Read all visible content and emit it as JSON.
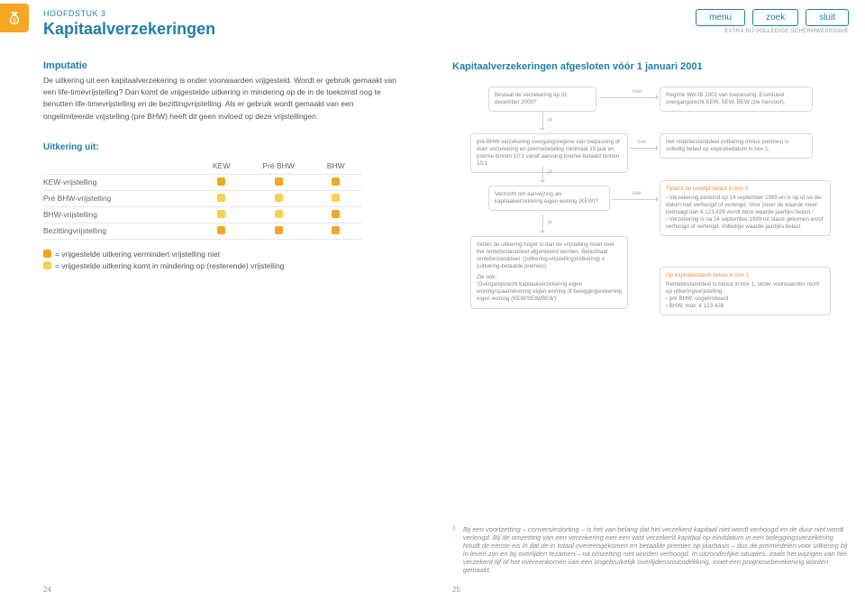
{
  "colors": {
    "accent": "#1f7fa8",
    "orange": "#f5a623",
    "yellow": "#f7d154",
    "text": "#555555",
    "muted": "#888888",
    "border": "#d8d8d8"
  },
  "header": {
    "chapter": "HOOFDSTUK 3",
    "title": "Kapitaalverzekeringen",
    "nav": {
      "menu": "menu",
      "zoek": "zoek",
      "sluit": "sluit"
    },
    "nav_caption": "EXTRA BIJ VOLLEDIGE SCHERMWEERGAVE"
  },
  "left": {
    "section": "Imputatie",
    "body": "De uitkering uit een kapitaalverzekering is onder voorwaarden vrijgesteld. Wordt er gebruik gemaakt van een life-timevrijstelling? Dan komt de vrijgestelde uitkering in mindering op de in de toekomst nog te benutten life-timevrijstelling en de bezittingvrijstelling. Als er gebruik wordt gemaakt van een ongelimiteerde vrijstelling (pre BHW) heeft dit geen invloed op deze vrijstellingen.",
    "uit_heading": "Uitkering uit:",
    "table": {
      "columns": [
        "KEW",
        "Pré BHW",
        "BHW"
      ],
      "rows": [
        {
          "label": "KEW-vrijstelling",
          "cells": [
            "orange",
            "orange",
            "orange"
          ]
        },
        {
          "label": "Pré BHW-vrijstelling",
          "cells": [
            "yellow",
            "yellow",
            "yellow"
          ]
        },
        {
          "label": "BHW-vrijstelling",
          "cells": [
            "yellow",
            "yellow",
            "orange"
          ]
        },
        {
          "label": "Bezittingvrijstelling",
          "cells": [
            "orange",
            "orange",
            "orange"
          ]
        }
      ]
    },
    "legend": {
      "orange": "= vrijgestelde uitkering vermindert vrijstelling niet",
      "yellow": "= vrijgestelde uitkering komt in mindering op (resterende) vrijstelling"
    },
    "page_num": "24"
  },
  "right": {
    "title": "Kapitaalverzekeringen afgesloten vóór 1 januari 2001",
    "flow": {
      "n1": "Bestaat de verzekering op 31 december 2000?",
      "n1r": "Regime Wet IB 2001 van toepassing. Eventueel overgangsrecht KEW, SEW, BEW (zie hiervoor).",
      "n2": "pré-BHW verzekering overgangsregime van toepassing of duur verzekering en premiebetaling minimaal 15 jaar en premie binnen 10:1 vanaf aanvang premie betaald binnen 10:1",
      "n2r": "Het rentebestanddeel (uitkering minus premies) is volledig belast op expiratiedatum in box 1.",
      "n3": "Verzocht om aanwijzing als kapitaalverzekering eigen woning (KEW)?",
      "n3r_head": "Tijdens de looptijd belast in box 3",
      "n3r_body": "› Verzekering bestond op 14 september 1999 en is op of na die datum niet verhoogd of verlengd. Voor zover de waarde meer bedraagt dan € 123.428 wordt deze waarde jaarlijks belast.¹\n› Verzekering is na 14 september 1999 tot stand gekomen en/of verhoogd of verlengd. Volledige waarde jaarlijks belast.",
      "n4": "Indien de uitkering hoger is dan de vrijstelling moet over het rentebestanddeel afgerekend worden. Belastbaar rentebestanddeel: ((uitkering-vrijstelling)/uitkering) x (uitkering-betaalde premies).",
      "n4_extra": "Zie ook:\n‘Overgangsrecht kapitaalverzekering eigen woning/spaarrekening eigen woning of beleggingsrekening eigen woning (KEW/SEW/BEW)’",
      "n4r_head": "Op expiratiedatum belast in box 1",
      "n4r_body": "Rentebestanddeel is belast in box 1, onder voorwaarden recht op uitkeringsvrijstelling:\n›   pré BHW:   ongelimiteerd\n›   BHW:          max: € 123.428",
      "ja": "ja",
      "nee": "nee"
    },
    "footnote": "Bij een voortzetting – conversiestorting – is het van belang dat het verzekerd kapitaal niet wordt verhoogd en de duur niet wordt verlengd. Bij de omzetting van een verzekering met een vast verzekerd kapitaal op einddatum in een beleggingsverzekering houdt de eerste eis in dat de in totaal overeengekomen en betaalde premies op jaarbasis – dus de premiedelen voor uitkering bij in leven zijn en bij overlijden tezamen – ná omzetting niet worden verhoogd. In uitzonderlijke situaties, zoals het wijzigen van het verzekerd lijf of het overeenkomen van een ongebruikelijk overlijdensrisicodekking, moet een prognoseberekening worden gemaakt.",
    "page_num": "25"
  }
}
